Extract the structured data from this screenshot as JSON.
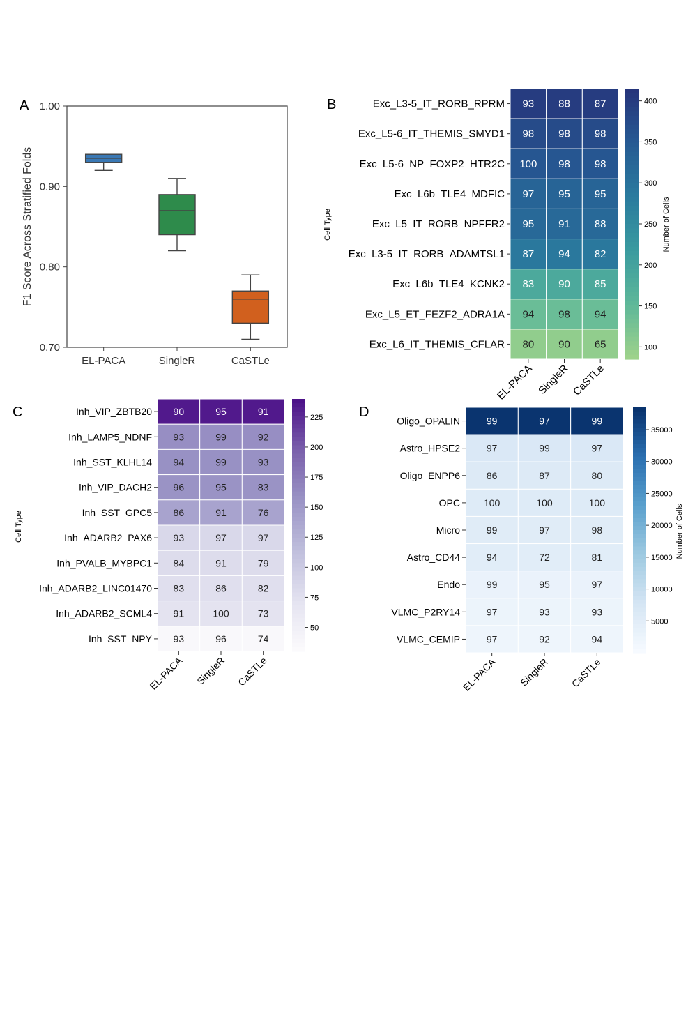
{
  "chart_data": [
    {
      "panel": "A",
      "type": "box",
      "ylabel": "F1 Score Across Stratified Folds",
      "xlabel": "",
      "ylim": [
        0.7,
        1.0
      ],
      "yticks": [
        0.7,
        0.8,
        0.9,
        1.0
      ],
      "ytick_labels": [
        "0.70",
        "0.80",
        "0.90",
        "1.00"
      ],
      "categories": [
        "EL-PACA",
        "SingleR",
        "CaSTLe"
      ],
      "boxes": [
        {
          "name": "EL-PACA",
          "whisker_low": 0.92,
          "q1": 0.93,
          "median": 0.935,
          "q3": 0.94,
          "whisker_high": 0.94,
          "color": "#3a78b4"
        },
        {
          "name": "SingleR",
          "whisker_low": 0.82,
          "q1": 0.84,
          "median": 0.87,
          "q3": 0.89,
          "whisker_high": 0.91,
          "color": "#2e8b4b"
        },
        {
          "name": "CaSTLe",
          "whisker_low": 0.71,
          "q1": 0.73,
          "median": 0.76,
          "q3": 0.77,
          "whisker_high": 0.79,
          "color": "#d1601e"
        }
      ]
    },
    {
      "panel": "B",
      "type": "heatmap",
      "ylabel": "Cell Type",
      "colorbar_label": "Number of Cells",
      "colorbar_range": [
        85,
        415
      ],
      "colorbar_ticks": [
        100,
        150,
        200,
        250,
        300,
        350,
        400
      ],
      "colorscale": [
        "#a0d38a",
        "#5fb899",
        "#3a9b9f",
        "#2a7b9e",
        "#265a93",
        "#26337a"
      ],
      "columns": [
        "EL-PACA",
        "SingleR",
        "CaSTLe"
      ],
      "rows": [
        "Exc_L3-5_IT_RORB_RPRM",
        "Exc_L5-6_IT_THEMIS_SMYD1",
        "Exc_L5-6_NP_FOXP2_HTR2C",
        "Exc_L6b_TLE4_MDFIC",
        "Exc_L5_IT_RORB_NPFFR2",
        "Exc_L3-5_IT_RORB_ADAMTSL1",
        "Exc_L6b_TLE4_KCNK2",
        "Exc_L5_ET_FEZF2_ADRA1A",
        "Exc_L6_IT_THEMIS_CFLAR"
      ],
      "row_counts": [
        400,
        375,
        355,
        330,
        320,
        290,
        185,
        140,
        100
      ],
      "values": [
        [
          93,
          88,
          87
        ],
        [
          98,
          98,
          98
        ],
        [
          100,
          98,
          98
        ],
        [
          97,
          95,
          95
        ],
        [
          95,
          91,
          88
        ],
        [
          87,
          94,
          82
        ],
        [
          83,
          90,
          85
        ],
        [
          94,
          98,
          94
        ],
        [
          80,
          90,
          65
        ]
      ]
    },
    {
      "panel": "C",
      "type": "heatmap",
      "ylabel": "Cell Type",
      "colorbar_label": "",
      "colorbar_range": [
        30,
        240
      ],
      "colorbar_ticks": [
        50,
        75,
        100,
        125,
        150,
        175,
        200,
        225
      ],
      "colorscale": [
        "#fcfbfd",
        "#e4e3f0",
        "#bfbedc",
        "#9a93c5",
        "#7a5fab",
        "#4b0f88"
      ],
      "columns": [
        "EL-PACA",
        "SingleR",
        "CaSTLe"
      ],
      "rows": [
        "Inh_VIP_ZBTB20",
        "Inh_LAMP5_NDNF",
        "Inh_SST_KLHL14",
        "Inh_VIP_DACH2",
        "Inh_SST_GPC5",
        "Inh_ADARB2_PAX6",
        "Inh_PVALB_MYBPC1",
        "Inh_ADARB2_LINC01470",
        "Inh_ADARB2_SCML4",
        "Inh_SST_NPY"
      ],
      "row_counts": [
        235,
        160,
        158,
        156,
        140,
        85,
        80,
        76,
        72,
        35
      ],
      "values": [
        [
          90,
          95,
          91
        ],
        [
          93,
          99,
          92
        ],
        [
          94,
          99,
          93
        ],
        [
          96,
          95,
          83
        ],
        [
          86,
          91,
          76
        ],
        [
          93,
          97,
          97
        ],
        [
          84,
          91,
          79
        ],
        [
          83,
          86,
          82
        ],
        [
          91,
          100,
          73
        ],
        [
          93,
          96,
          74
        ]
      ]
    },
    {
      "panel": "D",
      "type": "heatmap",
      "ylabel": "",
      "colorbar_label": "Number of Cells",
      "colorbar_range": [
        0,
        38500
      ],
      "colorbar_ticks": [
        5000,
        10000,
        15000,
        20000,
        25000,
        30000,
        35000
      ],
      "colorscale": [
        "#f7fbff",
        "#d5e5f4",
        "#9ecae1",
        "#5aa0cd",
        "#2a6fb0",
        "#08306b"
      ],
      "columns": [
        "EL-PACA",
        "SingleR",
        "CaSTLe"
      ],
      "rows": [
        "Oligo_OPALIN",
        "Astro_HPSE2",
        "Oligo_ENPP6",
        "OPC",
        "Micro",
        "Astro_CD44",
        "Endo",
        "VLMC_P2RY14",
        "VLMC_CEMIP"
      ],
      "row_counts": [
        38000,
        6500,
        6000,
        5600,
        5300,
        5000,
        3000,
        2500,
        2000
      ],
      "values": [
        [
          99,
          97,
          99
        ],
        [
          97,
          99,
          97
        ],
        [
          86,
          87,
          80
        ],
        [
          100,
          100,
          100
        ],
        [
          99,
          97,
          98
        ],
        [
          94,
          72,
          81
        ],
        [
          99,
          95,
          97
        ],
        [
          97,
          93,
          93
        ],
        [
          97,
          92,
          94
        ]
      ]
    }
  ],
  "panel_letters": [
    "A",
    "B",
    "C",
    "D"
  ]
}
